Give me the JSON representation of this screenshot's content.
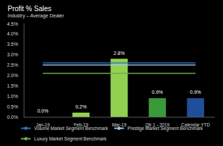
{
  "chart_data": {
    "type": "bar",
    "title": "Profit % Sales",
    "subtitle": "Industry – Average Dealer",
    "categories": [
      "Jan-19",
      "Feb-19",
      "Mar-19",
      "Qtr 1 - 2019",
      "Calendar YTD"
    ],
    "values": [
      0.0,
      0.2,
      2.8,
      0.9,
      0.9
    ],
    "value_labels": [
      "0.0%",
      "0.2%",
      "2.8%",
      "0.9%",
      "0.9%"
    ],
    "colors": [
      "#92d050",
      "#92d050",
      "#92d050",
      "#3a9a3a",
      "#1f4e9a"
    ],
    "data_labels": true,
    "series": [
      {
        "name": "Volume Market Segment Benchmark",
        "type": "line",
        "color": "#2e75b6",
        "values": [
          2.6,
          2.6,
          2.6,
          2.6,
          2.6
        ]
      },
      {
        "name": "Prestige Market Segment Benchmark",
        "type": "line",
        "color": "#9dc3e6",
        "values": [
          2.5,
          2.5,
          2.5,
          2.5,
          2.5
        ]
      },
      {
        "name": "Luxury Market Segment Benchmark",
        "type": "line",
        "color": "#70ad47",
        "values": [
          2.1,
          2.1,
          2.1,
          2.1,
          2.1
        ]
      }
    ],
    "ylim": [
      0,
      4.5
    ],
    "yticks": [
      {
        "value": 0,
        "label": "0.0%"
      },
      {
        "value": 0.5,
        "label": "0.5%"
      },
      {
        "value": 1,
        "label": "1.0%"
      },
      {
        "value": 1.5,
        "label": "1.5%"
      },
      {
        "value": 2,
        "label": "2.0%"
      },
      {
        "value": 2.5,
        "label": "2.5%"
      },
      {
        "value": 3,
        "label": "3.0%"
      },
      {
        "value": 3.5,
        "label": "3.5%"
      },
      {
        "value": 4,
        "label": "4.0%"
      },
      {
        "value": 4.5,
        "label": "4.5%"
      }
    ],
    "grid": false,
    "legend": "bottom"
  }
}
